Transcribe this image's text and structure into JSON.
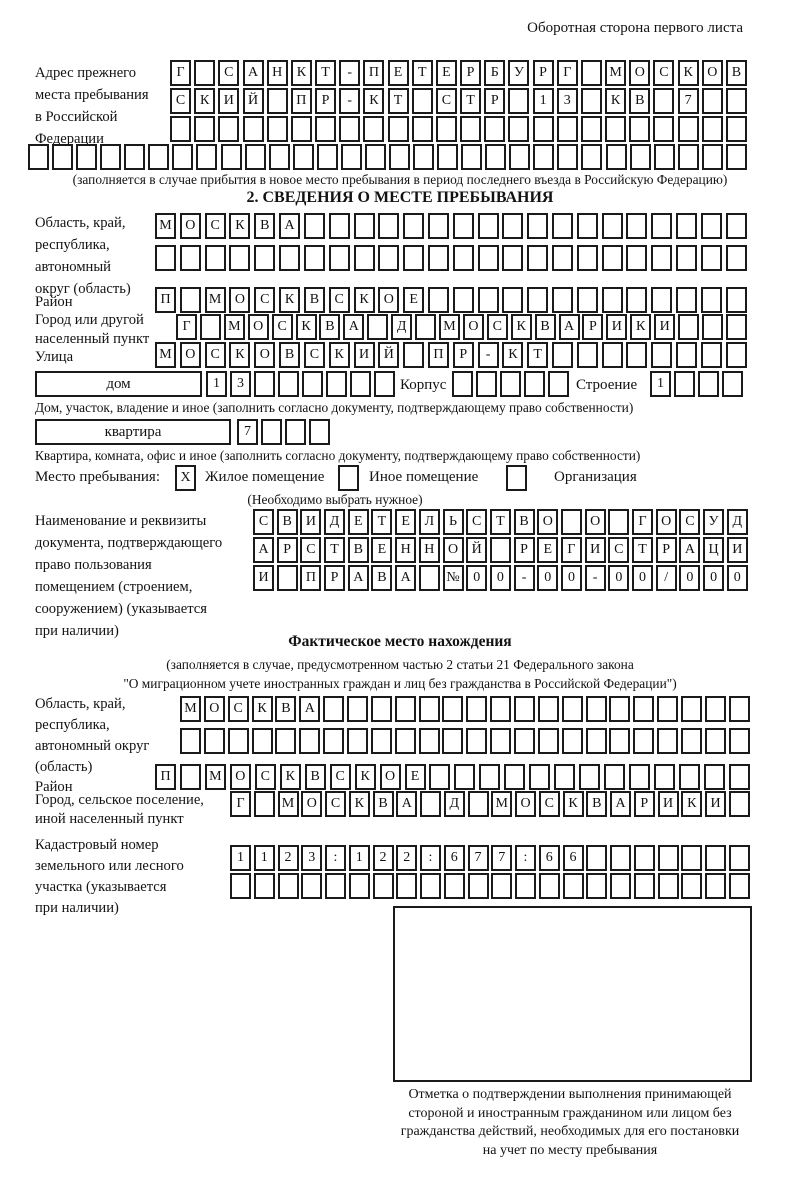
{
  "page": {
    "title": "Оборотная сторона первого листа"
  },
  "prev_address": {
    "label_lines": [
      "Адрес прежнего",
      "места пребывания",
      "в Российской",
      "Федерации"
    ],
    "rows": [
      {
        "text": "Г САНКТ-ПЕТЕРБУРГ МОСКОВ",
        "len": 24
      },
      {
        "text": "СКИЙ ПР-КТ СТР 13 КВ 7",
        "len": 24
      },
      {
        "text": "",
        "len": 24
      }
    ],
    "full_row": {
      "text": "",
      "len": 30
    },
    "note": "(заполняется в случае прибытия в новое место пребывания в период последнего въезда в Российскую Федерацию)"
  },
  "section2": {
    "title": "2. СВЕДЕНИЯ О МЕСТЕ ПРЕБЫВАНИЯ",
    "region": {
      "label_lines": [
        "Область, край,",
        "республика,",
        "автономный",
        "округ (область)"
      ],
      "rows": [
        {
          "text": "МОСКВА",
          "len": 24
        },
        {
          "text": "",
          "len": 24
        }
      ]
    },
    "district": {
      "label": "Район",
      "row": {
        "text": "П МОСКВСКОЕ",
        "len": 24
      }
    },
    "city": {
      "label_lines": [
        "Город или другой",
        "населенный пункт"
      ],
      "row": {
        "text": "Г МОСКВА Д МОСКВАРИКИ",
        "len": 24
      }
    },
    "street": {
      "label": "Улица",
      "row": {
        "text": "МОСКОВСКИЙ ПР-КТ",
        "len": 24
      }
    },
    "house": {
      "box_label": "дом",
      "cells": {
        "text": "13",
        "len": 8
      },
      "korpus_label": "Корпус",
      "korpus_cells": {
        "text": "",
        "len": 5
      },
      "stroenie_label": "Строение",
      "stroenie_cells": {
        "text": "1",
        "len": 4
      },
      "note": "Дом, участок, владение и иное (заполнить согласно документу, подтверждающему право собственности)"
    },
    "apartment": {
      "box_label": "квартира",
      "cells": {
        "text": "7",
        "len": 4
      },
      "note": "Квартира, комната, офис и иное (заполнить согласно документу, подтверждающему право собственности)"
    },
    "stay": {
      "label": "Место пребывания:",
      "options": [
        {
          "label": "Жилое помещение",
          "mark": "X"
        },
        {
          "label": "Иное помещение",
          "mark": ""
        },
        {
          "label": "Организация",
          "mark": ""
        }
      ],
      "note": "(Необходимо выбрать нужное)"
    },
    "doc": {
      "label_lines": [
        "Наименование и реквизиты",
        "документа, подтверждающего",
        "право пользования",
        "помещением (строением,",
        "сооружением) (указывается",
        "при наличии)"
      ],
      "rows": [
        {
          "text": "СВИДЕТЕЛЬСТВО О ГОСУД",
          "len": 21
        },
        {
          "text": "АРСТВЕННОЙ РЕГИСТРАЦИ",
          "len": 21
        },
        {
          "text": "И ПРАВА №00-00-00/000",
          "len": 21
        }
      ]
    }
  },
  "actual": {
    "title": "Фактическое место нахождения",
    "note_lines": [
      "(заполняется в случае, предусмотренном частью 2 статьи 21 Федерального закона",
      "\"О миграционном учете иностранных граждан и лиц без гражданства в Российской Федерации\")"
    ],
    "region": {
      "label_lines": [
        "Область, край,",
        "республика,",
        "автономный округ",
        "(область)"
      ],
      "rows": [
        {
          "text": "МОСКВА",
          "len": 24
        },
        {
          "text": "",
          "len": 24
        }
      ]
    },
    "district": {
      "label": "Район",
      "row": {
        "text": "П МОСКВСКОЕ",
        "len": 24
      }
    },
    "city": {
      "label_lines": [
        "Город, сельское поселение,",
        "иной населенный пункт"
      ],
      "row": {
        "text": "Г МОСКВА Д МОСКВАРИКИ",
        "len": 22
      }
    },
    "cadastre": {
      "label_lines": [
        "Кадастровый номер",
        "земельного или лесного",
        "участка (указывается",
        "при наличии)"
      ],
      "rows": [
        {
          "text": "1123:122:677:66",
          "len": 22
        },
        {
          "text": "",
          "len": 22
        }
      ]
    },
    "stamp_note_lines": [
      "Отметка о подтверждении выполнения принимающей",
      "стороной и иностранным гражданином или лицом без",
      "гражданства действий, необходимых для его постановки",
      "на учет по месту пребывания"
    ]
  }
}
